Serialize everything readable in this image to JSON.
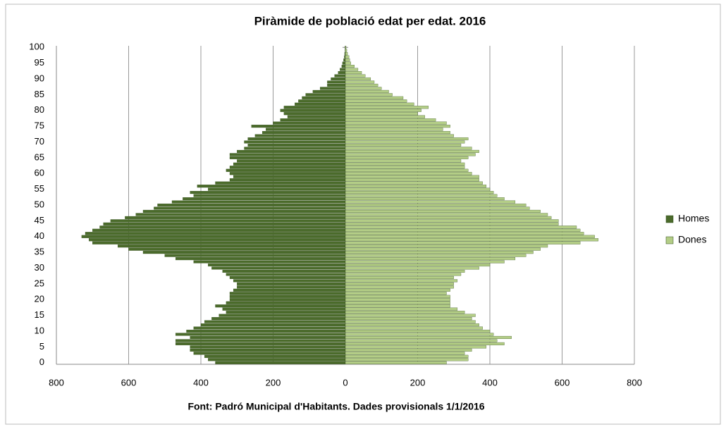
{
  "chart_data": {
    "type": "pyramid",
    "title": "Piràmide de població edat per edat. 2016",
    "footnote": "Font: Padró Municipal d'Habitants. Dades provisionals 1/1/2016",
    "categories": [
      0,
      null,
      null,
      null,
      null,
      5,
      null,
      null,
      null,
      null,
      10,
      null,
      null,
      null,
      null,
      15,
      null,
      null,
      null,
      null,
      20,
      null,
      null,
      null,
      null,
      25,
      null,
      null,
      null,
      null,
      30,
      null,
      null,
      null,
      null,
      35,
      null,
      null,
      null,
      null,
      40,
      null,
      null,
      null,
      null,
      45,
      null,
      null,
      null,
      null,
      50,
      null,
      null,
      null,
      null,
      55,
      null,
      null,
      null,
      null,
      60,
      null,
      null,
      null,
      null,
      65,
      null,
      null,
      null,
      null,
      70,
      null,
      null,
      null,
      null,
      75,
      null,
      null,
      null,
      null,
      80,
      null,
      null,
      null,
      null,
      85,
      null,
      null,
      null,
      null,
      90,
      null,
      null,
      null,
      null,
      95,
      null,
      null,
      null,
      null,
      100
    ],
    "series": [
      {
        "name": "Homes",
        "color": "#4b6b2b",
        "values": [
          -360,
          -380,
          -390,
          -420,
          -430,
          -430,
          -470,
          -470,
          -430,
          -470,
          -440,
          -420,
          -400,
          -390,
          -370,
          -350,
          -330,
          -340,
          -360,
          -330,
          -320,
          -320,
          -320,
          -310,
          -300,
          -300,
          -310,
          -320,
          -330,
          -340,
          -370,
          -380,
          -420,
          -470,
          -500,
          -560,
          -600,
          -630,
          -700,
          -710,
          -730,
          -720,
          -700,
          -680,
          -670,
          -650,
          -610,
          -580,
          -560,
          -530,
          -520,
          -480,
          -450,
          -420,
          -430,
          -380,
          -410,
          -360,
          -320,
          -310,
          -320,
          -330,
          -320,
          -310,
          -300,
          -320,
          -320,
          -300,
          -280,
          -270,
          -280,
          -270,
          -250,
          -230,
          -220,
          -260,
          -200,
          -180,
          -160,
          -170,
          -180,
          -170,
          -140,
          -130,
          -120,
          -110,
          -90,
          -70,
          -50,
          -50,
          -40,
          -30,
          -20,
          -15,
          -10,
          -8,
          -5,
          -3,
          -2,
          -1,
          -1
        ]
      },
      {
        "name": "Dones",
        "color": "#b3cd86",
        "values": [
          280,
          340,
          340,
          330,
          350,
          390,
          440,
          420,
          460,
          410,
          400,
          380,
          370,
          360,
          350,
          360,
          330,
          310,
          290,
          290,
          290,
          290,
          280,
          290,
          300,
          300,
          310,
          300,
          320,
          330,
          370,
          400,
          440,
          470,
          500,
          520,
          540,
          560,
          650,
          700,
          690,
          660,
          650,
          640,
          590,
          590,
          570,
          560,
          540,
          510,
          500,
          470,
          440,
          420,
          410,
          400,
          390,
          380,
          370,
          370,
          350,
          340,
          330,
          330,
          320,
          340,
          360,
          370,
          350,
          320,
          330,
          340,
          300,
          290,
          270,
          290,
          280,
          250,
          220,
          200,
          210,
          230,
          190,
          170,
          160,
          130,
          120,
          100,
          90,
          80,
          70,
          55,
          45,
          35,
          25,
          15,
          12,
          10,
          6,
          4,
          2
        ]
      }
    ],
    "xlim": [
      -800,
      800
    ],
    "xticks": [
      {
        "value": -800,
        "label": "800"
      },
      {
        "value": -600,
        "label": "600"
      },
      {
        "value": -400,
        "label": "400"
      },
      {
        "value": -200,
        "label": "200"
      },
      0,
      200,
      400,
      600,
      800
    ],
    "grid": true,
    "legend": "right"
  }
}
